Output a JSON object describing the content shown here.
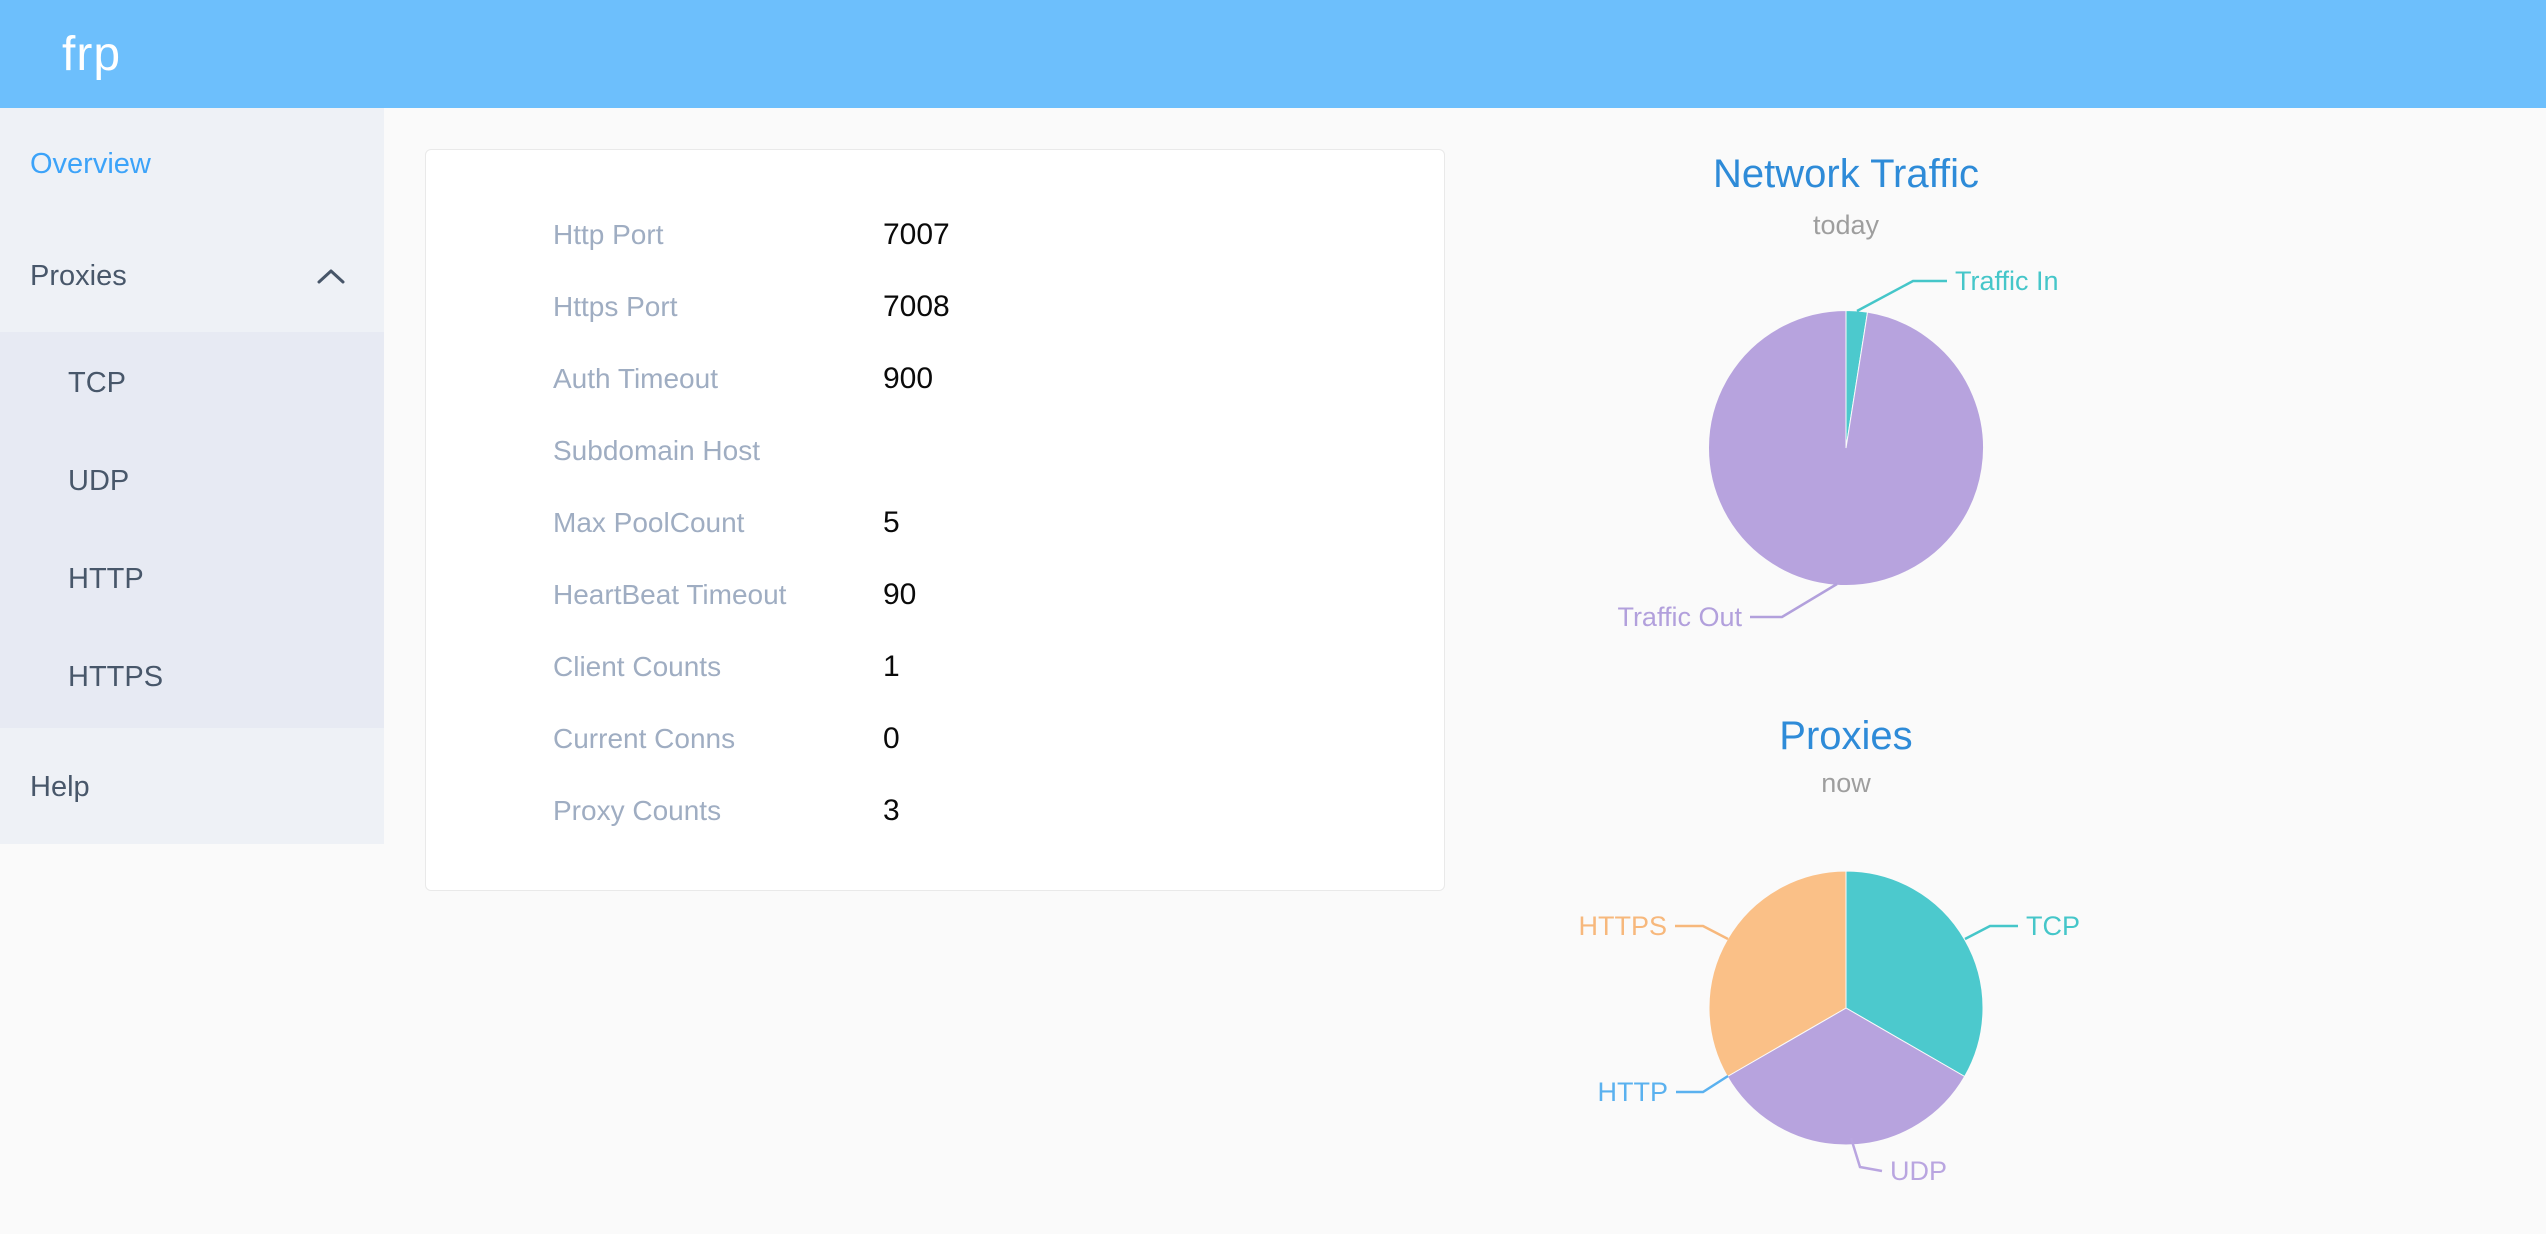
{
  "header": {
    "logo": "frp"
  },
  "sidebar": {
    "overview_label": "Overview",
    "proxies_label": "Proxies",
    "help_label": "Help",
    "submenu": [
      "TCP",
      "UDP",
      "HTTP",
      "HTTPS"
    ]
  },
  "overview": {
    "rows": [
      {
        "label": "Http Port",
        "value": "7007"
      },
      {
        "label": "Https Port",
        "value": "7008"
      },
      {
        "label": "Auth Timeout",
        "value": "900"
      },
      {
        "label": "Subdomain Host",
        "value": ""
      },
      {
        "label": "Max PoolCount",
        "value": "5"
      },
      {
        "label": "HeartBeat Timeout",
        "value": "90"
      },
      {
        "label": "Client Counts",
        "value": "1"
      },
      {
        "label": "Current Conns",
        "value": "0"
      },
      {
        "label": "Proxy Counts",
        "value": "3"
      }
    ]
  },
  "chart_data": [
    {
      "type": "pie",
      "title": "Network Traffic",
      "subtitle": "today",
      "legend_position": "callout-labels",
      "series": [
        {
          "name": "Traffic In",
          "value": 2.5,
          "color": "#4cc9cd",
          "label_color": "#45c6c9"
        },
        {
          "name": "Traffic Out",
          "value": 97.5,
          "color": "#b7a3de",
          "label_color": "#b2a0dc"
        }
      ]
    },
    {
      "type": "pie",
      "title": "Proxies",
      "subtitle": "now",
      "legend_position": "callout-labels",
      "series": [
        {
          "name": "TCP",
          "value": 1,
          "color": "#4cc9cd",
          "label_color": "#45c6c9"
        },
        {
          "name": "UDP",
          "value": 1,
          "color": "#b7a3de",
          "label_color": "#b9a5e0"
        },
        {
          "name": "HTTP",
          "value": 0,
          "color": "#5ab1ef",
          "label_color": "#5ab1ef"
        },
        {
          "name": "HTTPS",
          "value": 1,
          "color": "#fac087",
          "label_color": "#f7b87c"
        }
      ]
    }
  ],
  "colors": {
    "header_bg": "#6dbffc",
    "sidebar_bg": "#eef1f6",
    "submenu_bg": "#e7eaf3",
    "sidebar_active": "#3ca3f9",
    "sidebar_text": "#48576a",
    "card_label": "#9fadc2",
    "card_value": "#0a0a0a",
    "chart_title_blue": "#2e8bd8",
    "chart_subtitle_gray": "#9e9e9e"
  }
}
